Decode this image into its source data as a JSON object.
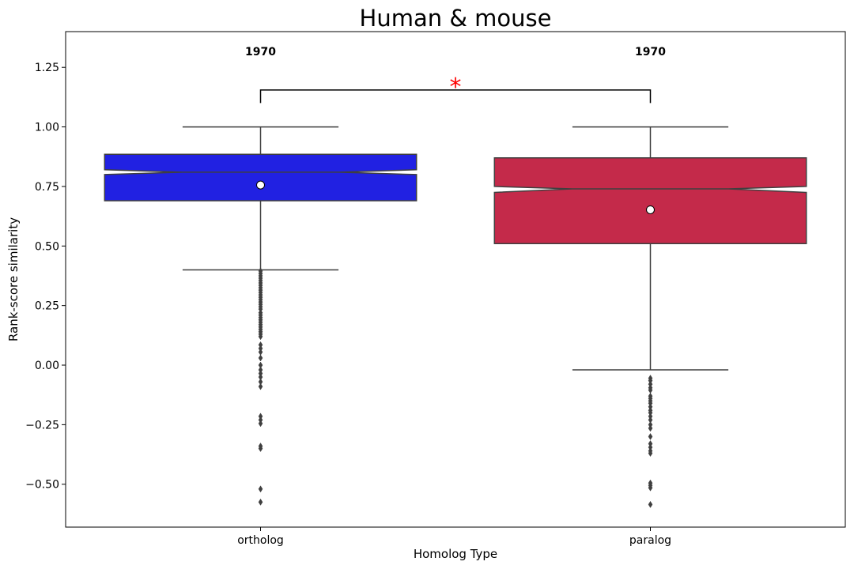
{
  "chart_data": {
    "type": "boxplot",
    "title": "Human & mouse",
    "xlabel": "Homolog Type",
    "ylabel": "Rank-score similarity",
    "ylim": [
      -0.68,
      1.4
    ],
    "yticks": [
      -0.5,
      -0.25,
      0.0,
      0.25,
      0.5,
      0.75,
      1.0,
      1.25
    ],
    "ytick_labels": [
      "−0.50",
      "−0.25",
      "0.00",
      "0.25",
      "0.50",
      "0.75",
      "1.00",
      "1.25"
    ],
    "notched": true,
    "grid": false,
    "categories": [
      "ortholog",
      "paralog"
    ],
    "series": [
      {
        "category": "ortholog",
        "color": "#2121e2",
        "whisker_low": 0.4,
        "q1": 0.69,
        "median": 0.81,
        "q3": 0.885,
        "whisker_high": 1.0,
        "notch_low": 0.8,
        "notch_high": 0.82,
        "mean": 0.756,
        "count_label": "1970",
        "outliers": [
          0.395,
          0.385,
          0.375,
          0.365,
          0.355,
          0.345,
          0.335,
          0.325,
          0.315,
          0.305,
          0.295,
          0.285,
          0.275,
          0.265,
          0.255,
          0.245,
          0.235,
          0.22,
          0.21,
          0.2,
          0.19,
          0.18,
          0.17,
          0.16,
          0.15,
          0.14,
          0.13,
          0.12,
          0.085,
          0.07,
          0.055,
          0.03,
          0.0,
          -0.02,
          -0.035,
          -0.05,
          -0.07,
          -0.09,
          -0.215,
          -0.23,
          -0.245,
          -0.34,
          -0.35,
          -0.52,
          -0.575
        ]
      },
      {
        "category": "paralog",
        "color": "#c42a4a",
        "whisker_low": -0.02,
        "q1": 0.51,
        "median": 0.74,
        "q3": 0.87,
        "whisker_high": 1.0,
        "notch_low": 0.725,
        "notch_high": 0.75,
        "mean": 0.652,
        "count_label": "1970",
        "outliers": [
          -0.055,
          -0.065,
          -0.08,
          -0.095,
          -0.105,
          -0.13,
          -0.14,
          -0.15,
          -0.16,
          -0.175,
          -0.19,
          -0.2,
          -0.215,
          -0.23,
          -0.25,
          -0.265,
          -0.3,
          -0.33,
          -0.345,
          -0.36,
          -0.37,
          -0.495,
          -0.505,
          -0.515,
          -0.585
        ]
      }
    ],
    "significance": {
      "from": "ortholog",
      "to": "paralog",
      "y_low": 1.1,
      "y_high": 1.155,
      "label": "*",
      "color": "#ff0000"
    }
  }
}
